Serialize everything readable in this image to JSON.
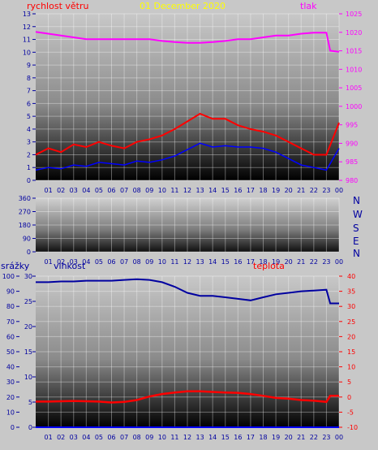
{
  "header": {
    "wind_label": "rychlost větru",
    "date": "01 December 2020",
    "pressure_label": "tlak",
    "rain_label": "srážky",
    "humidity_label": "vlhkost",
    "temp_label": "teplota"
  },
  "compass": [
    "N",
    "W",
    "S",
    "E",
    "N"
  ],
  "colors": {
    "wind": "#ff0000",
    "gust": "#0000ff",
    "pressure": "#ff00ff",
    "humidity": "#0000a0",
    "temperature": "#ff0000",
    "rain": "#0000ff",
    "date": "#ffff00",
    "axis_left": "#0000a0",
    "axis_right_pressure": "#ff00ff",
    "axis_right_temp": "#ff0000"
  },
  "chart_data": [
    {
      "type": "line",
      "name": "wind_pressure",
      "x_ticks": [
        "01",
        "02",
        "03",
        "04",
        "05",
        "06",
        "07",
        "08",
        "09",
        "10",
        "11",
        "12",
        "13",
        "14",
        "15",
        "16",
        "17",
        "18",
        "19",
        "20",
        "21",
        "22",
        "23",
        "00"
      ],
      "y_left_ticks": [
        "0",
        "1",
        "2",
        "3",
        "4",
        "5",
        "6",
        "7",
        "8",
        "9",
        "10",
        "11",
        "12",
        "13"
      ],
      "ylim_left": [
        0,
        13
      ],
      "y_right_ticks": [
        "980",
        "985",
        "990",
        "995",
        "1000",
        "1005",
        "1010",
        "1015",
        "1020",
        "1025"
      ],
      "ylim_right": [
        980,
        1026
      ],
      "series": [
        {
          "key": "pressure",
          "axis": "right",
          "x": [
            0,
            1,
            2,
            3,
            4,
            5,
            6,
            7,
            8,
            9,
            10,
            11,
            12,
            13,
            14,
            15,
            16,
            17,
            18,
            19,
            20,
            21,
            22,
            23,
            23.3,
            24
          ],
          "values": [
            1021,
            1020.5,
            1020,
            1019.5,
            1019,
            1019,
            1019,
            1019,
            1019,
            1019,
            1018.5,
            1018.2,
            1018,
            1018,
            1018.2,
            1018.5,
            1019,
            1019,
            1019.5,
            1020,
            1020,
            1020.5,
            1020.8,
            1020.8,
            1015.8,
            1015.5
          ]
        },
        {
          "key": "gust",
          "axis": "left",
          "x": [
            0,
            1,
            2,
            3,
            4,
            5,
            6,
            7,
            8,
            9,
            10,
            11,
            12,
            13,
            14,
            15,
            16,
            17,
            18,
            19,
            20,
            21,
            22,
            23,
            24
          ],
          "values": [
            0.8,
            1,
            0.9,
            1.2,
            1.1,
            1.4,
            1.3,
            1.2,
            1.5,
            1.4,
            1.6,
            1.9,
            2.4,
            2.9,
            2.6,
            2.7,
            2.6,
            2.6,
            2.5,
            2.2,
            1.7,
            1.2,
            1.0,
            0.8,
            2.5
          ]
        },
        {
          "key": "wind",
          "axis": "left",
          "x": [
            0,
            1,
            2,
            3,
            4,
            5,
            6,
            7,
            8,
            9,
            10,
            11,
            12,
            13,
            14,
            15,
            16,
            17,
            18,
            19,
            20,
            21,
            22,
            23,
            24
          ],
          "values": [
            2.0,
            2.5,
            2.2,
            2.8,
            2.6,
            3.0,
            2.7,
            2.5,
            3.0,
            3.2,
            3.5,
            4.0,
            4.6,
            5.2,
            4.8,
            4.8,
            4.3,
            4.0,
            3.8,
            3.5,
            3.0,
            2.5,
            2.0,
            2.0,
            4.5
          ]
        }
      ]
    },
    {
      "type": "line",
      "name": "wind_direction",
      "x_ticks": [
        "01",
        "02",
        "03",
        "04",
        "05",
        "06",
        "07",
        "08",
        "09",
        "10",
        "11",
        "12",
        "13",
        "14",
        "15",
        "16",
        "17",
        "18",
        "19",
        "20",
        "21",
        "22",
        "23",
        "00"
      ],
      "y_left_ticks": [
        "0",
        "90",
        "180",
        "270",
        "360"
      ],
      "ylim_left": [
        0,
        360
      ],
      "series": []
    },
    {
      "type": "line",
      "name": "humidity_temperature_rain",
      "x_ticks": [
        "01",
        "02",
        "03",
        "04",
        "05",
        "06",
        "07",
        "08",
        "09",
        "10",
        "11",
        "12",
        "13",
        "14",
        "15",
        "16",
        "17",
        "18",
        "19",
        "20",
        "21",
        "22",
        "23",
        "00"
      ],
      "y_far_left_ticks": [
        "0",
        "10",
        "20",
        "30",
        "40",
        "50",
        "60",
        "70",
        "80",
        "90",
        "100"
      ],
      "y_left_ticks": [
        "0",
        "5",
        "10",
        "15",
        "20",
        "25",
        "30"
      ],
      "ylim_left": [
        0,
        30
      ],
      "y_right_ticks": [
        "-10",
        "-5",
        "0",
        "5",
        "10",
        "15",
        "20",
        "25",
        "30",
        "35",
        "40"
      ],
      "ylim_right": [
        -10,
        40
      ],
      "series": [
        {
          "key": "humidity",
          "axis": "far_left",
          "x": [
            0,
            1,
            2,
            3,
            4,
            5,
            6,
            7,
            8,
            9,
            10,
            11,
            12,
            13,
            14,
            15,
            16,
            17,
            18,
            19,
            20,
            21,
            22,
            23,
            23.3,
            24
          ],
          "values": [
            96,
            96,
            96.5,
            96.5,
            97,
            97,
            97,
            97.5,
            98,
            97.5,
            96,
            93,
            89,
            87,
            87,
            86,
            85,
            84,
            86,
            88,
            89,
            90,
            90.5,
            91,
            82,
            82
          ]
        },
        {
          "key": "temperature",
          "axis": "right",
          "x": [
            0,
            1,
            2,
            3,
            4,
            5,
            6,
            7,
            8,
            9,
            10,
            11,
            12,
            13,
            14,
            15,
            16,
            17,
            18,
            19,
            20,
            21,
            22,
            23,
            23.3,
            24
          ],
          "values": [
            -1.5,
            -1.5,
            -1.4,
            -1.3,
            -1.4,
            -1.5,
            -1.8,
            -1.6,
            -1,
            0.2,
            1,
            1.5,
            1.9,
            1.9,
            1.7,
            1.5,
            1.4,
            1.0,
            0.4,
            -0.3,
            -0.5,
            -1.0,
            -1.2,
            -1.6,
            0.4,
            0.4
          ]
        },
        {
          "key": "rain",
          "axis": "far_left",
          "x": [
            0,
            24
          ],
          "values": [
            0,
            0
          ]
        }
      ]
    }
  ]
}
